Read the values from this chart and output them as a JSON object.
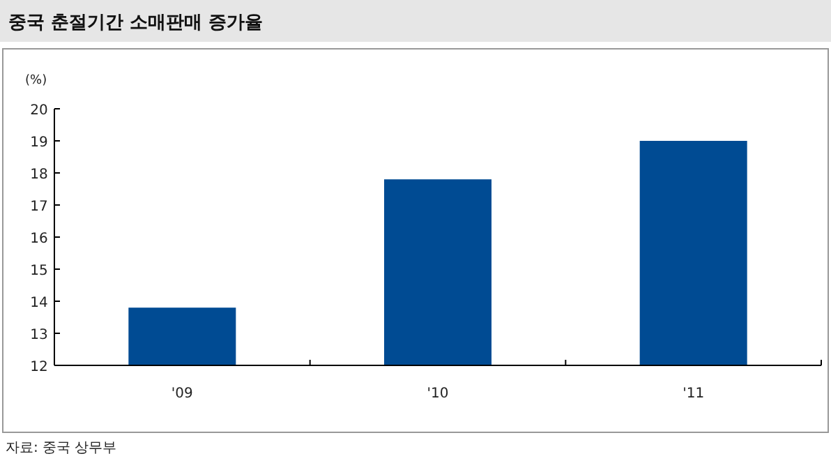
{
  "chart_data": {
    "type": "bar",
    "title": "중국 춘절기간 소매판매 증가율",
    "ylabel": "(%)",
    "categories": [
      "'09",
      "'10",
      "'11"
    ],
    "values": [
      13.8,
      17.8,
      19.0
    ],
    "color": "#004b93",
    "ylim": [
      12,
      20
    ],
    "yticks": [
      12,
      13,
      14,
      15,
      16,
      17,
      18,
      19,
      20
    ],
    "grid": false,
    "annotations": [
      "자료: 중국 상무부"
    ]
  }
}
